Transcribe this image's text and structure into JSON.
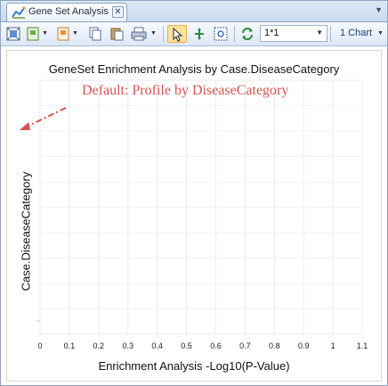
{
  "tab": {
    "label": "Gene Set Analysis",
    "close_glyph": "✕",
    "menu_glyph": "▼"
  },
  "toolbar": {
    "buttons": [
      "fit-grid-icon",
      "save-image-icon",
      "export-icon",
      "copy-icon",
      "paste-icon",
      "print-icon",
      "pointer-icon",
      "pan-icon",
      "zoom-fit-icon",
      "refresh-icon"
    ],
    "layout_value": "1*1",
    "layout_arrow": "▼",
    "dropdown_glyph": "▼",
    "charts_label": "1 Chart"
  },
  "chart_data": {
    "type": "scatter",
    "title": "GeneSet Enrichment Analysis by Case.DiseaseCategory",
    "xlabel": "Enrichment Analysis -Log10(P-Value)",
    "ylabel": "Case.DiseaseCategory",
    "annotation": "Default: Profile by DiseaseCategory",
    "xlim": [
      0,
      1.1
    ],
    "xticks": [
      "0",
      "0.1",
      "0.2",
      "0.3",
      "0.4",
      "0.5",
      "0.6",
      "0.7",
      "0.8",
      "0.9",
      "1",
      "1.1"
    ],
    "series": [],
    "grid": true,
    "legend": "none"
  },
  "colors": {
    "annotation": "#d9534f",
    "grid": "#ececec",
    "axis": "#cccccc"
  }
}
